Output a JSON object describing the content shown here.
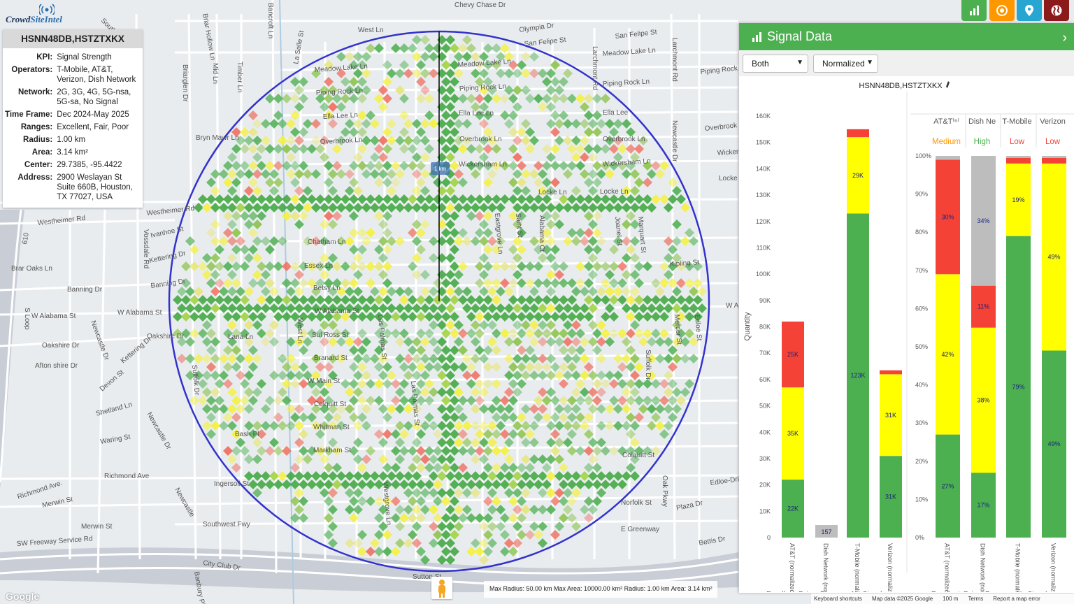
{
  "logo": {
    "part1": "Crowd",
    "part2": "SiteIntel"
  },
  "info": {
    "title": "HSNN48DB,HSTZTXKX",
    "rows": [
      {
        "k": "KPI:",
        "v": "Signal Strength"
      },
      {
        "k": "Operators:",
        "v": "T-Mobile, AT&T, Verizon, Dish Network"
      },
      {
        "k": "Network:",
        "v": "2G, 3G, 4G, 5G-nsa, 5G-sa, No Signal"
      },
      {
        "k": "Time Frame:",
        "v": "Dec 2024-May 2025"
      },
      {
        "k": "Ranges:",
        "v": "Excellent, Fair, Poor"
      },
      {
        "k": "Radius:",
        "v": "1.00 km"
      },
      {
        "k": "Area:",
        "v": "3.14 km²"
      },
      {
        "k": "Center:",
        "v": "29.7385, -95.4422"
      },
      {
        "k": "Address:",
        "v": "2900 Weslayan St Suite 660B, Houston, TX 77027, USA"
      }
    ]
  },
  "map": {
    "scale_label": "1 km",
    "streets": [
      {
        "t": "Chevy Chase Dr"
      },
      {
        "t": "West Ln"
      },
      {
        "t": "Olympia Dr"
      },
      {
        "t": "San Felipe St"
      },
      {
        "t": "San Felipe St"
      },
      {
        "t": "Meadow Lake Ln"
      },
      {
        "t": "Meadow Lake Ln"
      },
      {
        "t": "Meadow Lake Ln"
      },
      {
        "t": "Piping Rock Ln"
      },
      {
        "t": "Piping Rock Ln"
      },
      {
        "t": "Piping Rock Ln"
      },
      {
        "t": "Piping Rock"
      },
      {
        "t": "Ella Lee Ln"
      },
      {
        "t": "Ella Lee Ln"
      },
      {
        "t": "Ella Lee"
      },
      {
        "t": "Overbrook Ln"
      },
      {
        "t": "Overbrook Ln"
      },
      {
        "t": "Overbrook Ln"
      },
      {
        "t": "Overbrook"
      },
      {
        "t": "Wickersham Ln"
      },
      {
        "t": "Wickersham Ln"
      },
      {
        "t": "Wickersham"
      },
      {
        "t": "Locke Ln"
      },
      {
        "t": "Locke Ln"
      },
      {
        "t": "Locke"
      },
      {
        "t": "Westheimer Rd"
      },
      {
        "t": "Westheimer Rd"
      },
      {
        "t": "Chatham Ln"
      },
      {
        "t": "Essex Ln"
      },
      {
        "t": "Betsy Ln"
      },
      {
        "t": "Kipling St"
      },
      {
        "t": "Banning Dr"
      },
      {
        "t": "Banning Dr"
      },
      {
        "t": "W Alabama St"
      },
      {
        "t": "W Alabama St"
      },
      {
        "t": "W Alabama St"
      },
      {
        "t": "W A"
      },
      {
        "t": "Oakshire Dr"
      },
      {
        "t": "Oakshire Dr"
      },
      {
        "t": "Lana Ln"
      },
      {
        "t": "Sul Ross St"
      },
      {
        "t": "Branard St"
      },
      {
        "t": "Afton shire Dr"
      },
      {
        "t": "Devon St"
      },
      {
        "t": "W Main St"
      },
      {
        "t": "Colquitt St"
      },
      {
        "t": "Colquitt St"
      },
      {
        "t": "Shetland Ln"
      },
      {
        "t": "Whitman St"
      },
      {
        "t": "Waring St"
      },
      {
        "t": "Bash Pl"
      },
      {
        "t": "Markham St"
      },
      {
        "t": "Richmond Ave"
      },
      {
        "t": "Richmond Ave."
      },
      {
        "t": "Ingersoll St"
      },
      {
        "t": "Merwin St"
      },
      {
        "t": "Merwin St"
      },
      {
        "t": "Southwest Fwy"
      },
      {
        "t": "SW Freeway Service Rd"
      },
      {
        "t": "City Club Dr"
      },
      {
        "t": "Norfolk St"
      },
      {
        "t": "E Greenway"
      },
      {
        "t": "Plaza Dr"
      },
      {
        "t": "Edloe-Drive"
      },
      {
        "t": "Bettis Dr"
      },
      {
        "t": "Bryn Mawr Ln"
      },
      {
        "t": "Ivanhoe St"
      },
      {
        "t": "Kettering Dr"
      },
      {
        "t": "Kettering Dr"
      },
      {
        "t": "Vossdale Rd"
      },
      {
        "t": "S Loop"
      },
      {
        "t": "610"
      },
      {
        "t": "Brar Oaks Ln"
      },
      {
        "t": "Briar Hollow Ln"
      },
      {
        "t": "Bancroft Ln"
      },
      {
        "t": "Briarglen Dr"
      },
      {
        "t": "Mid Ln"
      },
      {
        "t": "Timber Ln"
      },
      {
        "t": "Larchmont Rd"
      },
      {
        "t": "Larchmont Rd"
      },
      {
        "t": "Newcastle Dr"
      },
      {
        "t": "Newcastle Dr"
      },
      {
        "t": "Newcastle Dr"
      },
      {
        "t": "Newcastle"
      },
      {
        "t": "Banbury Pl"
      },
      {
        "t": "Suffolk Dr"
      },
      {
        "t": "La Salle St"
      },
      {
        "t": "Las Palmas St"
      },
      {
        "t": "Las Palmas St"
      },
      {
        "t": "Westgrove Ln"
      },
      {
        "t": "Eastgrove Ln"
      },
      {
        "t": "Saint St"
      },
      {
        "t": "Joanel St"
      },
      {
        "t": "Marquart St"
      },
      {
        "t": "Mercer St"
      },
      {
        "t": "Edloe St"
      },
      {
        "t": "Oak Pkwy"
      },
      {
        "t": "South Fwy"
      },
      {
        "t": "Sutton St"
      },
      {
        "t": "Alabama Ct"
      },
      {
        "t": "Suffolk Dr"
      },
      {
        "t": "West Ln"
      }
    ]
  },
  "radius_box": "Max Radius: 50.00 km Max Area: 10000.00 km² Radius: 1.00 km Area: 3.14 km²",
  "attribution": {
    "shortcuts": "Keyboard shortcuts",
    "mapdata": "Map data ©2025 Google",
    "scale": "100 m",
    "terms": "Terms",
    "report": "Report a map error"
  },
  "google_logo": "Google",
  "panel": {
    "title": "Signal Data",
    "select1": "Both",
    "select2": "Normalized",
    "chart_title": "HSNN48DB,HSTZTXKX"
  },
  "colors": {
    "excellent": "#4caf50",
    "fair": "#ffff00",
    "poor": "#f44336",
    "nosignal": "#bdbdbd",
    "accent": "#4caf50",
    "circle": "#3333cc"
  },
  "chart_data": [
    {
      "type": "bar",
      "stacked": true,
      "categories": [
        "AT&T (normalized)",
        "Dish Network (normalized)",
        "T-Mobile (normalized)",
        "Verizon (normalized)"
      ],
      "ylabel": "Quantity",
      "ylim": [
        0,
        160000
      ],
      "yticks": [
        "0",
        "10K",
        "20K",
        "30K",
        "40K",
        "50K",
        "60K",
        "70K",
        "80K",
        "90K",
        "100K",
        "110K",
        "120K",
        "130K",
        "140K",
        "150K",
        "160K"
      ],
      "series": [
        {
          "name": "Excellent",
          "values": [
            22000,
            0,
            123000,
            31000
          ],
          "labels": [
            "22K",
            "",
            "123K",
            "31K"
          ]
        },
        {
          "name": "Fair",
          "values": [
            35000,
            0,
            29000,
            31000
          ],
          "labels": [
            "35K",
            "",
            "29K",
            "31K"
          ]
        },
        {
          "name": "Poor",
          "values": [
            25000,
            0,
            3000,
            1500
          ],
          "labels": [
            "25K",
            "",
            "",
            ""
          ]
        },
        {
          "name": "No Signal",
          "values": [
            0,
            157,
            0,
            0
          ],
          "labels": [
            "",
            "157",
            "",
            ""
          ]
        }
      ]
    },
    {
      "type": "bar",
      "stacked": true,
      "percent": true,
      "categories": [
        "AT&T (normalized)",
        "Dish Network (normalized)",
        "T-Mobile (normalized)",
        "Verizon (normalized)"
      ],
      "headers": [
        "AT&T⁽ⁿ⁾",
        "Dish Ne",
        "T-Mobile",
        "Verizon"
      ],
      "ratings": [
        "Medium",
        "High",
        "Low",
        "Low"
      ],
      "rating_colors": [
        "#ff9800",
        "#4caf50",
        "#f44336",
        "#f44336"
      ],
      "ylim": [
        0,
        100
      ],
      "yticks": [
        "0%",
        "10%",
        "20%",
        "30%",
        "40%",
        "50%",
        "60%",
        "70%",
        "80%",
        "90%",
        "100%"
      ],
      "series": [
        {
          "name": "Excellent",
          "values": [
            27,
            17,
            79,
            49
          ],
          "labels": [
            "27%",
            "17%",
            "79%",
            "49%"
          ]
        },
        {
          "name": "Fair",
          "values": [
            42,
            38,
            19,
            49
          ],
          "labels": [
            "42%",
            "38%",
            "19%",
            "49%"
          ]
        },
        {
          "name": "Poor",
          "values": [
            30,
            11,
            1.5,
            1.5
          ],
          "labels": [
            "30%",
            "11%",
            "",
            ""
          ]
        },
        {
          "name": "No Signal",
          "values": [
            1,
            34,
            0.5,
            0.5
          ],
          "labels": [
            "",
            "34%",
            "",
            ""
          ]
        }
      ]
    }
  ],
  "legend": [
    "Excellent",
    "Fair",
    "Poor",
    "No Signal"
  ]
}
